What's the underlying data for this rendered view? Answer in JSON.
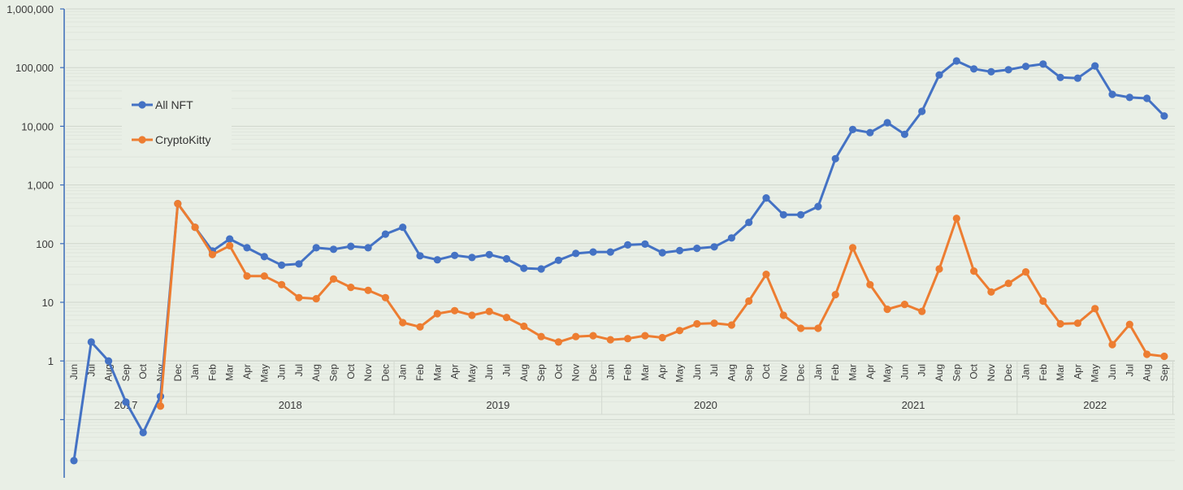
{
  "chart_data": {
    "type": "line",
    "title": "",
    "xlabel": "",
    "ylabel": "",
    "yscale": "log",
    "ylim": [
      0.01,
      1000000
    ],
    "y_tick_labels": [
      "1,000,000",
      "100,000",
      "10,000",
      "1,000",
      "100",
      "10",
      "1"
    ],
    "grid": true,
    "legend_position": "upper-left",
    "x_months": [
      "Jun",
      "Jul",
      "Aug",
      "Sep",
      "Oct",
      "Nov",
      "Dec",
      "Jan",
      "Feb",
      "Mar",
      "Apr",
      "May",
      "Jun",
      "Jul",
      "Aug",
      "Sep",
      "Oct",
      "Nov",
      "Dec",
      "Jan",
      "Feb",
      "Mar",
      "Apr",
      "May",
      "Jun",
      "Jul",
      "Aug",
      "Sep",
      "Oct",
      "Nov",
      "Dec",
      "Jan",
      "Feb",
      "Mar",
      "Apr",
      "May",
      "Jun",
      "Jul",
      "Aug",
      "Sep",
      "Oct",
      "Nov",
      "Dec",
      "Jan",
      "Feb",
      "Mar",
      "Apr",
      "May",
      "Jun",
      "Jul",
      "Aug",
      "Sep",
      "Oct",
      "Nov",
      "Dec",
      "Jan",
      "Feb",
      "Mar",
      "Apr",
      "May",
      "Jun",
      "Jul",
      "Aug",
      "Sep"
    ],
    "x_years": [
      {
        "label": "2017",
        "start": 0,
        "end": 6
      },
      {
        "label": "2018",
        "start": 7,
        "end": 18
      },
      {
        "label": "2019",
        "start": 19,
        "end": 30
      },
      {
        "label": "2020",
        "start": 31,
        "end": 42
      },
      {
        "label": "2021",
        "start": 43,
        "end": 54
      },
      {
        "label": "2022",
        "start": 55,
        "end": 63
      }
    ],
    "series": [
      {
        "name": "All NFT",
        "color": "#4472c4",
        "values": [
          0.02,
          2.1,
          1.0,
          0.2,
          0.06,
          0.25,
          480,
          190,
          75,
          120,
          85,
          60,
          43,
          45,
          85,
          80,
          90,
          85,
          145,
          190,
          62,
          53,
          63,
          58,
          65,
          55,
          38,
          37,
          52,
          68,
          72,
          72,
          95,
          98,
          70,
          76,
          83,
          88,
          125,
          230,
          600,
          310,
          310,
          430,
          2800,
          8800,
          7800,
          11500,
          7300,
          18000,
          75000,
          130000,
          95000,
          85000,
          92000,
          105000,
          115000,
          68000,
          66000,
          107000,
          35000,
          31000,
          30000,
          15000
        ]
      },
      {
        "name": "CryptoKitty",
        "color": "#ed7d31",
        "start_index": 5,
        "values": [
          0.17,
          480,
          190,
          65,
          92,
          28,
          28,
          20,
          12,
          11.5,
          25,
          18,
          16,
          12,
          4.5,
          3.8,
          6.4,
          7.2,
          6.0,
          7.0,
          5.5,
          3.9,
          2.6,
          2.1,
          2.6,
          2.7,
          2.3,
          2.4,
          2.7,
          2.5,
          3.3,
          4.3,
          4.4,
          4.1,
          10.5,
          30,
          6.0,
          3.6,
          3.6,
          13.5,
          85,
          20,
          7.6,
          9.2,
          7.0,
          37,
          270,
          34,
          15,
          21,
          33,
          10.5,
          4.3,
          4.4,
          7.8,
          1.9,
          4.2,
          1.3,
          1.2
        ]
      }
    ]
  }
}
